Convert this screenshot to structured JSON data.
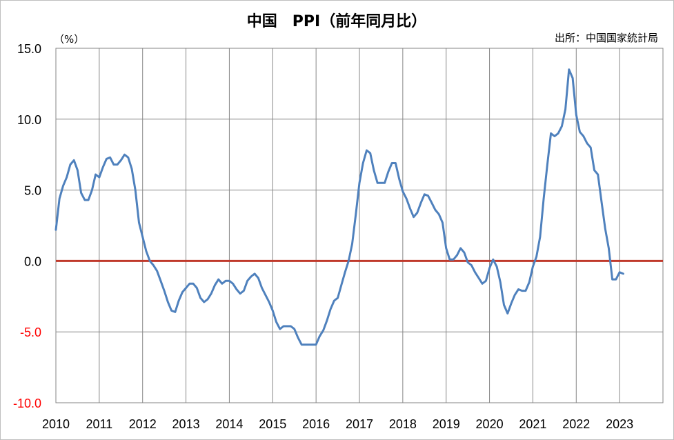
{
  "chart_data": {
    "type": "line",
    "title": "中国　PPI（前年同月比）",
    "unit_label": "（%）",
    "source_label": "出所：中国国家統計局",
    "ylim": [
      -10,
      15
    ],
    "yticks": [
      15,
      10,
      5,
      0,
      -5,
      -10
    ],
    "ytick_labels": [
      "15.0",
      "10.0",
      "5.0",
      "0.0",
      "-5.0",
      "-10.0"
    ],
    "xlim": [
      2010,
      2024
    ],
    "xticks": [
      2010,
      2011,
      2012,
      2013,
      2014,
      2015,
      2016,
      2017,
      2018,
      2019,
      2020,
      2021,
      2022,
      2023
    ],
    "xtick_labels": [
      "2010",
      "2011",
      "2012",
      "2013",
      "2014",
      "2015",
      "2016",
      "2017",
      "2018",
      "2019",
      "2020",
      "2021",
      "2022",
      "2023"
    ],
    "grid": true,
    "reference_line": {
      "y": 0,
      "color": "#c0392b"
    },
    "series_color": "#4f81bd",
    "negative_tick_color": "#ff0000",
    "series": [
      {
        "values": [
          [
            2010.0,
            2.2
          ],
          [
            2010.083,
            4.4
          ],
          [
            2010.167,
            5.3
          ],
          [
            2010.25,
            5.9
          ],
          [
            2010.333,
            6.8
          ],
          [
            2010.417,
            7.1
          ],
          [
            2010.5,
            6.4
          ],
          [
            2010.583,
            4.8
          ],
          [
            2010.667,
            4.3
          ],
          [
            2010.75,
            4.3
          ],
          [
            2010.833,
            5.0
          ],
          [
            2010.917,
            6.1
          ],
          [
            2011.0,
            5.9
          ],
          [
            2011.083,
            6.6
          ],
          [
            2011.167,
            7.2
          ],
          [
            2011.25,
            7.3
          ],
          [
            2011.333,
            6.8
          ],
          [
            2011.417,
            6.8
          ],
          [
            2011.5,
            7.1
          ],
          [
            2011.583,
            7.5
          ],
          [
            2011.667,
            7.3
          ],
          [
            2011.75,
            6.5
          ],
          [
            2011.833,
            5.0
          ],
          [
            2011.917,
            2.7
          ],
          [
            2012.0,
            1.7
          ],
          [
            2012.083,
            0.7
          ],
          [
            2012.167,
            0.0
          ],
          [
            2012.25,
            -0.3
          ],
          [
            2012.333,
            -0.7
          ],
          [
            2012.417,
            -1.4
          ],
          [
            2012.5,
            -2.1
          ],
          [
            2012.583,
            -2.9
          ],
          [
            2012.667,
            -3.5
          ],
          [
            2012.75,
            -3.6
          ],
          [
            2012.833,
            -2.8
          ],
          [
            2012.917,
            -2.2
          ],
          [
            2013.0,
            -1.9
          ],
          [
            2013.083,
            -1.6
          ],
          [
            2013.167,
            -1.6
          ],
          [
            2013.25,
            -1.9
          ],
          [
            2013.333,
            -2.6
          ],
          [
            2013.417,
            -2.9
          ],
          [
            2013.5,
            -2.7
          ],
          [
            2013.583,
            -2.3
          ],
          [
            2013.667,
            -1.7
          ],
          [
            2013.75,
            -1.3
          ],
          [
            2013.833,
            -1.6
          ],
          [
            2013.917,
            -1.4
          ],
          [
            2014.0,
            -1.4
          ],
          [
            2014.083,
            -1.6
          ],
          [
            2014.167,
            -2.0
          ],
          [
            2014.25,
            -2.3
          ],
          [
            2014.333,
            -2.1
          ],
          [
            2014.417,
            -1.4
          ],
          [
            2014.5,
            -1.1
          ],
          [
            2014.583,
            -0.9
          ],
          [
            2014.667,
            -1.2
          ],
          [
            2014.75,
            -1.9
          ],
          [
            2014.833,
            -2.4
          ],
          [
            2014.917,
            -2.9
          ],
          [
            2015.0,
            -3.5
          ],
          [
            2015.083,
            -4.3
          ],
          [
            2015.167,
            -4.8
          ],
          [
            2015.25,
            -4.6
          ],
          [
            2015.333,
            -4.6
          ],
          [
            2015.417,
            -4.6
          ],
          [
            2015.5,
            -4.8
          ],
          [
            2015.583,
            -5.4
          ],
          [
            2015.667,
            -5.9
          ],
          [
            2015.75,
            -5.9
          ],
          [
            2015.833,
            -5.9
          ],
          [
            2015.917,
            -5.9
          ],
          [
            2016.0,
            -5.9
          ],
          [
            2016.083,
            -5.3
          ],
          [
            2016.167,
            -4.9
          ],
          [
            2016.25,
            -4.2
          ],
          [
            2016.333,
            -3.4
          ],
          [
            2016.417,
            -2.8
          ],
          [
            2016.5,
            -2.6
          ],
          [
            2016.583,
            -1.7
          ],
          [
            2016.667,
            -0.8
          ],
          [
            2016.75,
            0.0
          ],
          [
            2016.833,
            1.2
          ],
          [
            2016.917,
            3.3
          ],
          [
            2017.0,
            5.5
          ],
          [
            2017.083,
            6.9
          ],
          [
            2017.167,
            7.8
          ],
          [
            2017.25,
            7.6
          ],
          [
            2017.333,
            6.4
          ],
          [
            2017.417,
            5.5
          ],
          [
            2017.5,
            5.5
          ],
          [
            2017.583,
            5.5
          ],
          [
            2017.667,
            6.3
          ],
          [
            2017.75,
            6.9
          ],
          [
            2017.833,
            6.9
          ],
          [
            2017.917,
            5.8
          ],
          [
            2018.0,
            4.9
          ],
          [
            2018.083,
            4.4
          ],
          [
            2018.167,
            3.7
          ],
          [
            2018.25,
            3.1
          ],
          [
            2018.333,
            3.4
          ],
          [
            2018.417,
            4.1
          ],
          [
            2018.5,
            4.7
          ],
          [
            2018.583,
            4.6
          ],
          [
            2018.667,
            4.1
          ],
          [
            2018.75,
            3.6
          ],
          [
            2018.833,
            3.3
          ],
          [
            2018.917,
            2.7
          ],
          [
            2019.0,
            0.9
          ],
          [
            2019.083,
            0.1
          ],
          [
            2019.167,
            0.1
          ],
          [
            2019.25,
            0.4
          ],
          [
            2019.333,
            0.9
          ],
          [
            2019.417,
            0.6
          ],
          [
            2019.5,
            -0.1
          ],
          [
            2019.583,
            -0.3
          ],
          [
            2019.667,
            -0.8
          ],
          [
            2019.75,
            -1.2
          ],
          [
            2019.833,
            -1.6
          ],
          [
            2019.917,
            -1.4
          ],
          [
            2020.0,
            -0.5
          ],
          [
            2020.083,
            0.1
          ],
          [
            2020.167,
            -0.4
          ],
          [
            2020.25,
            -1.5
          ],
          [
            2020.333,
            -3.1
          ],
          [
            2020.417,
            -3.7
          ],
          [
            2020.5,
            -3.0
          ],
          [
            2020.583,
            -2.4
          ],
          [
            2020.667,
            -2.0
          ],
          [
            2020.75,
            -2.1
          ],
          [
            2020.833,
            -2.1
          ],
          [
            2020.917,
            -1.5
          ],
          [
            2021.0,
            -0.4
          ],
          [
            2021.083,
            0.3
          ],
          [
            2021.167,
            1.7
          ],
          [
            2021.25,
            4.4
          ],
          [
            2021.333,
            6.8
          ],
          [
            2021.417,
            9.0
          ],
          [
            2021.5,
            8.8
          ],
          [
            2021.583,
            9.0
          ],
          [
            2021.667,
            9.5
          ],
          [
            2021.75,
            10.7
          ],
          [
            2021.833,
            13.5
          ],
          [
            2021.917,
            12.9
          ],
          [
            2022.0,
            10.3
          ],
          [
            2022.083,
            9.1
          ],
          [
            2022.167,
            8.8
          ],
          [
            2022.25,
            8.3
          ],
          [
            2022.333,
            8.0
          ],
          [
            2022.417,
            6.4
          ],
          [
            2022.5,
            6.1
          ],
          [
            2022.583,
            4.2
          ],
          [
            2022.667,
            2.3
          ],
          [
            2022.75,
            0.9
          ],
          [
            2022.833,
            -1.3
          ],
          [
            2022.917,
            -1.3
          ],
          [
            2023.0,
            -0.8
          ],
          [
            2023.083,
            -0.9
          ]
        ]
      }
    ]
  }
}
